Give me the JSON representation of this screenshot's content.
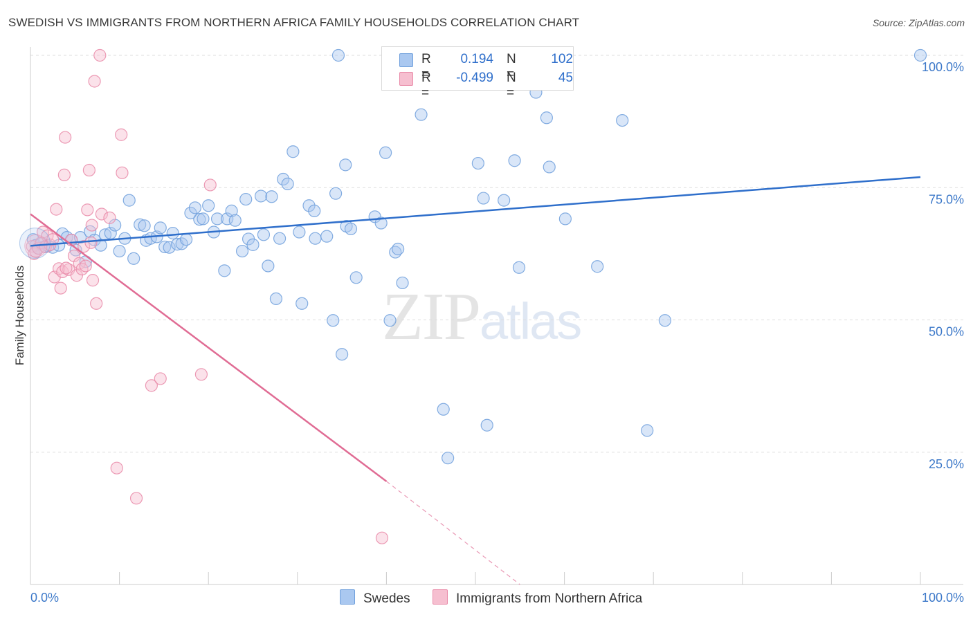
{
  "title": "SWEDISH VS IMMIGRANTS FROM NORTHERN AFRICA FAMILY HOUSEHOLDS CORRELATION CHART",
  "source": "Source: ZipAtlas.com",
  "watermark": {
    "zip": "ZIP",
    "atlas": "atlas"
  },
  "legend_top": {
    "swedes": {
      "r_label": "R =",
      "r_value": "0.194",
      "n_label": "N =",
      "n_value": "102"
    },
    "immigrants": {
      "r_label": "R =",
      "r_value": "-0.499",
      "n_label": "N =",
      "n_value": "45"
    }
  },
  "legend_bottom": {
    "swedes": "Swedes",
    "immigrants": "Immigrants from Northern Africa"
  },
  "colors": {
    "blue_fill": "#aac8f0",
    "blue_stroke": "#6f9fdc",
    "blue_line": "#2f6fcb",
    "pink_fill": "#f6bfd0",
    "pink_stroke": "#e98aa8",
    "pink_line": "#e06c94",
    "grid": "#dddddd",
    "tick_label": "#3d79c9"
  },
  "chart_data": {
    "type": "scatter",
    "title": "SWEDISH VS IMMIGRANTS FROM NORTHERN AFRICA FAMILY HOUSEHOLDS CORRELATION CHART",
    "xlabel": "",
    "ylabel": "Family Households",
    "xlim": [
      0,
      100
    ],
    "ylim": [
      0,
      100
    ],
    "x_tick_labels": [
      "0.0%",
      "100.0%"
    ],
    "y_ticks": [
      {
        "value": 100,
        "label": "100.0%"
      },
      {
        "value": 75,
        "label": "75.0%"
      },
      {
        "value": 50,
        "label": "50.0%"
      },
      {
        "value": 25,
        "label": "25.0%"
      }
    ],
    "grid": true,
    "series": [
      {
        "name": "Swedes",
        "trend": {
          "x0": 0,
          "y0": 64.0,
          "x1": 100,
          "y1": 77.0
        },
        "points": [
          [
            0.3,
            65.2
          ],
          [
            0.6,
            64.1
          ],
          [
            0.9,
            63.6
          ],
          [
            1.2,
            64.4
          ],
          [
            1.6,
            63.9
          ],
          [
            2.0,
            64.0
          ],
          [
            2.5,
            63.7
          ],
          [
            3.2,
            64.1
          ],
          [
            3.6,
            66.3
          ],
          [
            4.1,
            65.6
          ],
          [
            4.6,
            65.1
          ],
          [
            5.1,
            63.2
          ],
          [
            5.6,
            65.6
          ],
          [
            6.2,
            61.0
          ],
          [
            6.7,
            66.7
          ],
          [
            7.2,
            65.1
          ],
          [
            7.9,
            64.1
          ],
          [
            8.4,
            66.1
          ],
          [
            9.0,
            66.4
          ],
          [
            9.5,
            67.9
          ],
          [
            10.0,
            63.0
          ],
          [
            10.6,
            65.4
          ],
          [
            11.1,
            72.6
          ],
          [
            11.6,
            61.6
          ],
          [
            12.3,
            68.0
          ],
          [
            12.8,
            67.8
          ],
          [
            13.0,
            65.0
          ],
          [
            13.5,
            65.4
          ],
          [
            14.2,
            65.7
          ],
          [
            14.6,
            67.4
          ],
          [
            15.1,
            63.8
          ],
          [
            15.6,
            63.7
          ],
          [
            16.0,
            66.4
          ],
          [
            16.5,
            64.3
          ],
          [
            17.0,
            64.4
          ],
          [
            17.5,
            65.2
          ],
          [
            18.0,
            70.2
          ],
          [
            18.5,
            71.2
          ],
          [
            19.0,
            69.0
          ],
          [
            19.4,
            69.1
          ],
          [
            20.0,
            71.6
          ],
          [
            20.6,
            66.6
          ],
          [
            21.0,
            69.1
          ],
          [
            21.8,
            59.3
          ],
          [
            22.1,
            69.1
          ],
          [
            22.6,
            70.6
          ],
          [
            23.0,
            68.8
          ],
          [
            23.8,
            63.0
          ],
          [
            24.2,
            72.8
          ],
          [
            24.5,
            65.3
          ],
          [
            25.0,
            64.2
          ],
          [
            25.9,
            73.4
          ],
          [
            26.2,
            66.1
          ],
          [
            26.7,
            60.2
          ],
          [
            27.1,
            73.3
          ],
          [
            27.6,
            54.0
          ],
          [
            28.0,
            65.4
          ],
          [
            28.4,
            76.6
          ],
          [
            28.9,
            75.7
          ],
          [
            29.5,
            81.8
          ],
          [
            30.2,
            66.6
          ],
          [
            30.5,
            53.1
          ],
          [
            31.3,
            71.6
          ],
          [
            31.9,
            70.6
          ],
          [
            32.0,
            65.4
          ],
          [
            33.3,
            65.8
          ],
          [
            34.0,
            49.9
          ],
          [
            34.3,
            73.9
          ],
          [
            35.0,
            43.5
          ],
          [
            35.4,
            79.3
          ],
          [
            35.5,
            67.7
          ],
          [
            36.0,
            67.2
          ],
          [
            36.6,
            58.0
          ],
          [
            38.7,
            69.5
          ],
          [
            39.4,
            68.3
          ],
          [
            39.9,
            81.6
          ],
          [
            40.4,
            49.9
          ],
          [
            41.0,
            62.8
          ],
          [
            41.3,
            63.4
          ],
          [
            41.8,
            57.0
          ],
          [
            43.9,
            88.8
          ],
          [
            46.4,
            33.1
          ],
          [
            46.9,
            23.9
          ],
          [
            47.1,
            100.0
          ],
          [
            50.3,
            79.6
          ],
          [
            50.9,
            73.0
          ],
          [
            51.3,
            30.1
          ],
          [
            53.2,
            72.6
          ],
          [
            54.4,
            80.1
          ],
          [
            54.9,
            59.9
          ],
          [
            56.8,
            93.0
          ],
          [
            58.0,
            88.2
          ],
          [
            58.3,
            78.9
          ],
          [
            60.1,
            69.1
          ],
          [
            63.7,
            60.1
          ],
          [
            66.5,
            87.7
          ],
          [
            71.3,
            49.9
          ],
          [
            69.3,
            29.1
          ],
          [
            100.0,
            100.0
          ],
          [
            34.6,
            100.0
          ],
          [
            49.8,
            100.0
          ],
          [
            56.9,
            100.0
          ]
        ]
      },
      {
        "name": "Immigrants from Northern Africa",
        "trend": {
          "x0": 0,
          "y0": 70.0,
          "x1": 40,
          "y1": 19.5,
          "dash_to_x": 55.0,
          "dash_to_y": 0
        },
        "points": [
          [
            0.2,
            63.9
          ],
          [
            0.4,
            62.5
          ],
          [
            0.6,
            62.9
          ],
          [
            0.9,
            63.5
          ],
          [
            1.2,
            64.6
          ],
          [
            1.4,
            66.6
          ],
          [
            1.7,
            63.8
          ],
          [
            1.9,
            65.9
          ],
          [
            2.2,
            64.2
          ],
          [
            2.5,
            65.2
          ],
          [
            2.7,
            58.1
          ],
          [
            2.9,
            70.9
          ],
          [
            3.2,
            59.7
          ],
          [
            3.4,
            56.0
          ],
          [
            3.6,
            59.1
          ],
          [
            3.8,
            77.4
          ],
          [
            3.9,
            84.5
          ],
          [
            4.3,
            59.5
          ],
          [
            4.6,
            65.1
          ],
          [
            4.9,
            62.1
          ],
          [
            5.2,
            58.4
          ],
          [
            5.5,
            60.7
          ],
          [
            5.8,
            59.6
          ],
          [
            6.0,
            63.9
          ],
          [
            6.2,
            60.2
          ],
          [
            6.4,
            70.8
          ],
          [
            6.6,
            78.3
          ],
          [
            6.8,
            64.6
          ],
          [
            6.9,
            67.9
          ],
          [
            7.0,
            57.5
          ],
          [
            7.2,
            95.1
          ],
          [
            7.4,
            53.1
          ],
          [
            7.8,
            100.0
          ],
          [
            8.0,
            70.0
          ],
          [
            8.9,
            69.3
          ],
          [
            9.7,
            22.0
          ],
          [
            10.2,
            85.0
          ],
          [
            10.3,
            77.8
          ],
          [
            11.9,
            16.3
          ],
          [
            13.6,
            37.6
          ],
          [
            14.6,
            38.9
          ],
          [
            19.2,
            39.7
          ],
          [
            20.2,
            75.5
          ],
          [
            39.5,
            8.8
          ],
          [
            4.0,
            59.8
          ]
        ]
      }
    ]
  }
}
